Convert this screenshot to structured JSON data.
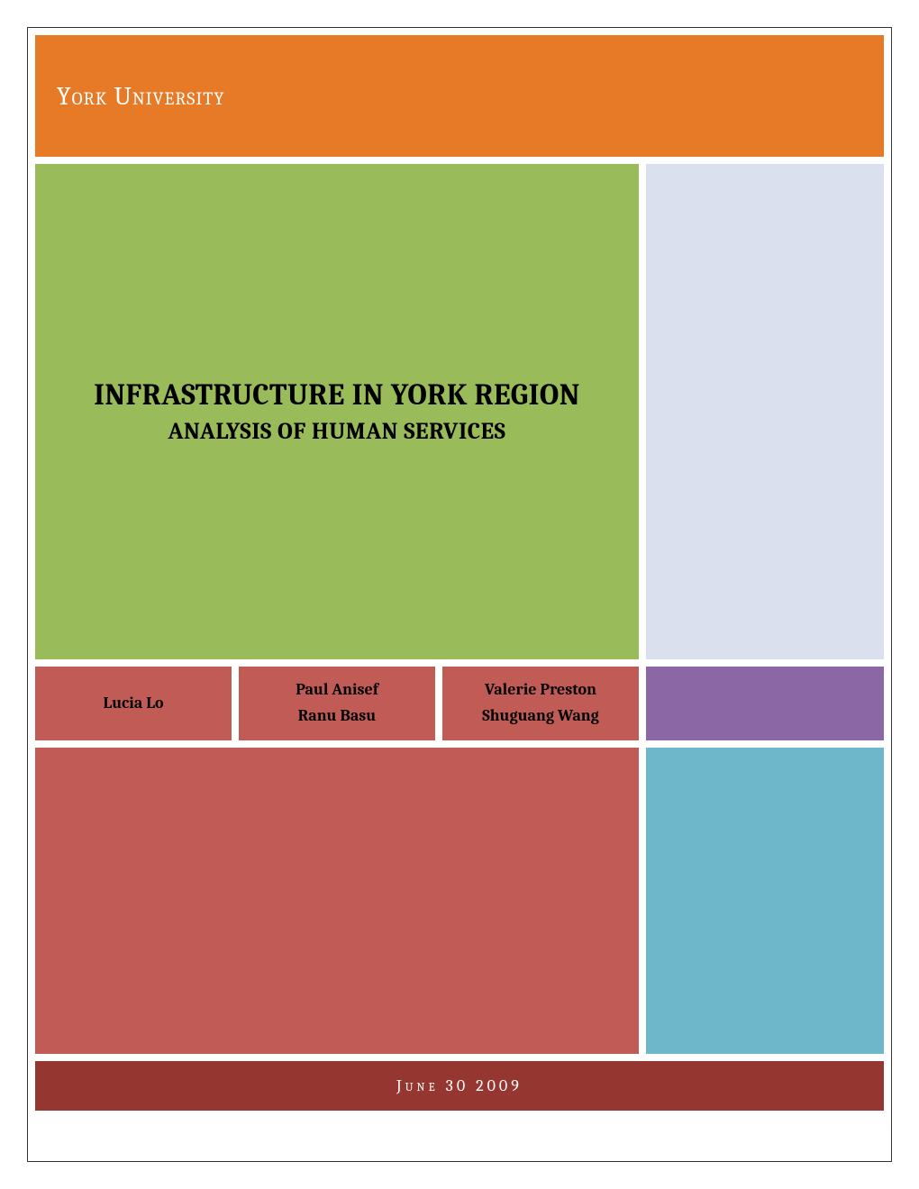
{
  "colors": {
    "header_bg": "#e77a27",
    "title_bg": "#9abb59",
    "side_bg": "#dbe0ef",
    "author_bg": "#c15b56",
    "purple_bg": "#8b68a5",
    "bottom_left_bg": "#c15b56",
    "bottom_right_bg": "#6eb6c9",
    "footer_bg": "#963631"
  },
  "header": {
    "institution": "York University"
  },
  "title": {
    "main": "INFRASTRUCTURE IN YORK REGION",
    "sub": "ANALYSIS OF HUMAN SERVICES"
  },
  "authors": {
    "cell1_line1": "Lucia Lo",
    "cell2_line1": "Paul Anisef",
    "cell2_line2": "Ranu Basu",
    "cell3_line1": "Valerie Preston",
    "cell3_line2": "Shuguang Wang"
  },
  "footer": {
    "date": "June 30 2009"
  }
}
